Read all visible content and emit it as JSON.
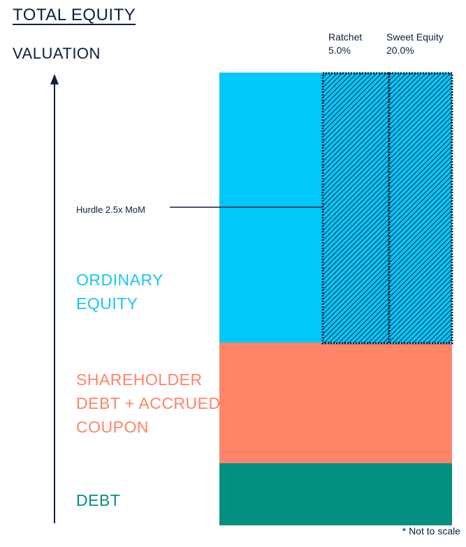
{
  "title": "TOTAL EQUITY",
  "axis_label": "VALUATION",
  "columns": [
    {
      "name": "Ratchet",
      "value": "5.0%"
    },
    {
      "name": "Sweet Equity",
      "value": "20.0%"
    }
  ],
  "hurdle_label": "Hurdle 2.5x MoM",
  "segments": {
    "ordinary_equity": {
      "line1": "ORDINARY",
      "line2": "EQUITY"
    },
    "shareholder_debt": {
      "line1": "SHAREHOLDER",
      "line2": "DEBT + ACCRUED",
      "line3": "COUPON"
    },
    "debt": {
      "line1": "DEBT"
    }
  },
  "note": "* Not to scale",
  "colors": {
    "ordinary_equity": "#00c8f8",
    "shareholder_debt": "#ff8468",
    "debt": "#019080",
    "text_dark": "#0c1f3f"
  }
}
